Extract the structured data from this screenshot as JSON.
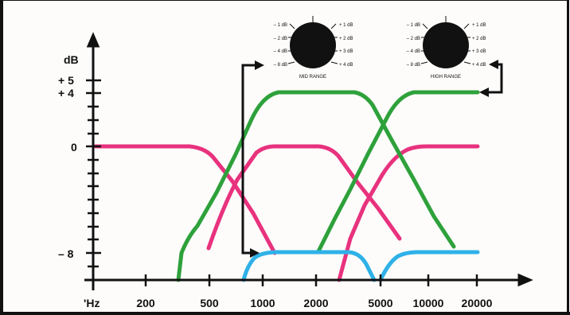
{
  "y_axis": {
    "unit": "dB",
    "ticks": [
      {
        "label": "+ 5",
        "value": 5
      },
      {
        "label": "+ 4",
        "value": 4
      },
      {
        "label": "0",
        "value": 0
      },
      {
        "label": "– 8",
        "value": -8
      }
    ]
  },
  "x_axis": {
    "ticks": [
      "'Hz",
      "200",
      "500",
      "1000",
      "2000",
      "5000",
      "10000",
      "20000"
    ]
  },
  "knobs": [
    {
      "name": "mid",
      "label": "MID RANGE",
      "left_marks": [
        "– 1 dB",
        "– 2 dB",
        "– 4 dB",
        "– 8 dB"
      ],
      "right_marks": [
        "+ 1 dB",
        "+ 2 dB",
        "+ 3 dB",
        "+ 4 dB"
      ]
    },
    {
      "name": "high",
      "label": "HIGH RANGE",
      "left_marks": [
        "– 1 dB",
        "– 2 dB",
        "– 4 dB",
        "– 8 dB"
      ],
      "right_marks": [
        "+ 1 dB",
        "+ 2 dB",
        "+ 3 dB",
        "+ 4 dB"
      ]
    }
  ],
  "colors": {
    "green": "#2ea13b",
    "pink": "#e8327e",
    "blue": "#2fb1e8",
    "ink": "#111111"
  }
}
